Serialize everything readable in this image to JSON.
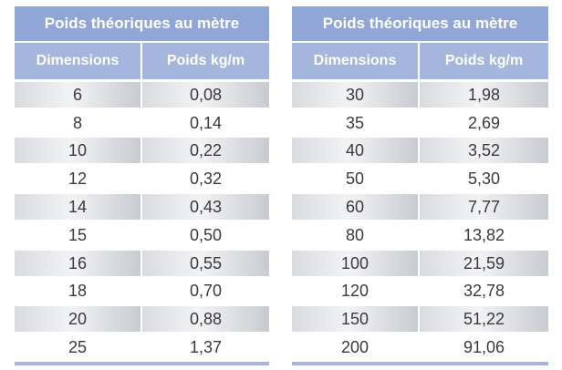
{
  "tables": [
    {
      "title": "Poids théoriques au mètre",
      "col1_header": "Dimensions",
      "col2_header": "Poids kg/m",
      "rows": [
        {
          "dim": "6",
          "weight": "0,08"
        },
        {
          "dim": "8",
          "weight": "0,14"
        },
        {
          "dim": "10",
          "weight": "0,22"
        },
        {
          "dim": "12",
          "weight": "0,32"
        },
        {
          "dim": "14",
          "weight": "0,43"
        },
        {
          "dim": "15",
          "weight": "0,50"
        },
        {
          "dim": "16",
          "weight": "0,55"
        },
        {
          "dim": "18",
          "weight": "0,70"
        },
        {
          "dim": "20",
          "weight": "0,88"
        },
        {
          "dim": "25",
          "weight": "1,37"
        }
      ]
    },
    {
      "title": "Poids théoriques au mètre",
      "col1_header": "Dimensions",
      "col2_header": "Poids kg/m",
      "rows": [
        {
          "dim": "30",
          "weight": "1,98"
        },
        {
          "dim": "35",
          "weight": "2,69"
        },
        {
          "dim": "40",
          "weight": "3,52"
        },
        {
          "dim": "50",
          "weight": "5,30"
        },
        {
          "dim": "60",
          "weight": "7,77"
        },
        {
          "dim": "80",
          "weight": "13,82"
        },
        {
          "dim": "100",
          "weight": "21,59"
        },
        {
          "dim": "120",
          "weight": "32,78"
        },
        {
          "dim": "150",
          "weight": "51,22"
        },
        {
          "dim": "200",
          "weight": "91,06"
        }
      ]
    }
  ],
  "colors": {
    "title_bg": "#8fa6d6",
    "header_bg": "#a4b6dd",
    "text": "#3a3a3a",
    "shade": "#d9dbdf"
  }
}
